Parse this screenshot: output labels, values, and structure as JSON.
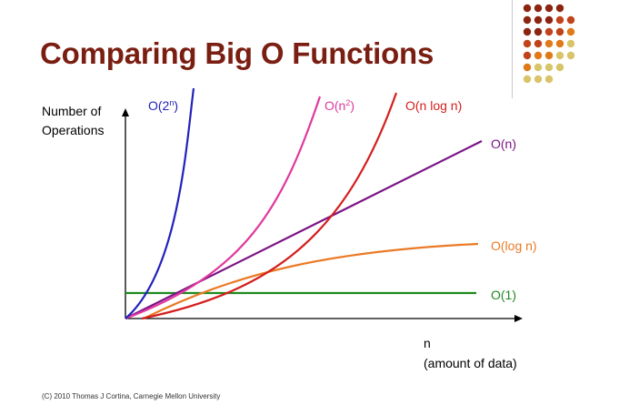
{
  "slide": {
    "title": "Comparing Big O Functions",
    "footer": "(C) 2010 Thomas J Cortina, Carnegie Mellon University"
  },
  "chart_data": {
    "type": "line",
    "ylabel_line1": "Number of",
    "ylabel_line2": "Operations",
    "xlabel_line1": "n",
    "xlabel_line2": "(amount of data)",
    "series": [
      {
        "key": "exp",
        "name": "O(2",
        "sup": "n",
        "name_end": ")",
        "color": "#2222bb"
      },
      {
        "key": "sq",
        "name": "O(n",
        "sup": "2",
        "name_end": ")",
        "color": "#e0399e"
      },
      {
        "key": "nlogn",
        "name": "O(n log n)",
        "color": "#d41e1e"
      },
      {
        "key": "lin",
        "name": "O(n)",
        "color": "#7a1486"
      },
      {
        "key": "log",
        "name": "O(log n)",
        "color": "#ea7a26"
      },
      {
        "key": "const",
        "name": "O(1)",
        "color": "#1f8a1f"
      }
    ]
  },
  "colors": {
    "title": "#7a1e12",
    "axis": "#000000",
    "dot_palette": [
      "#8b2410",
      "#c0431a",
      "#e07a18",
      "#d9c46a"
    ]
  }
}
